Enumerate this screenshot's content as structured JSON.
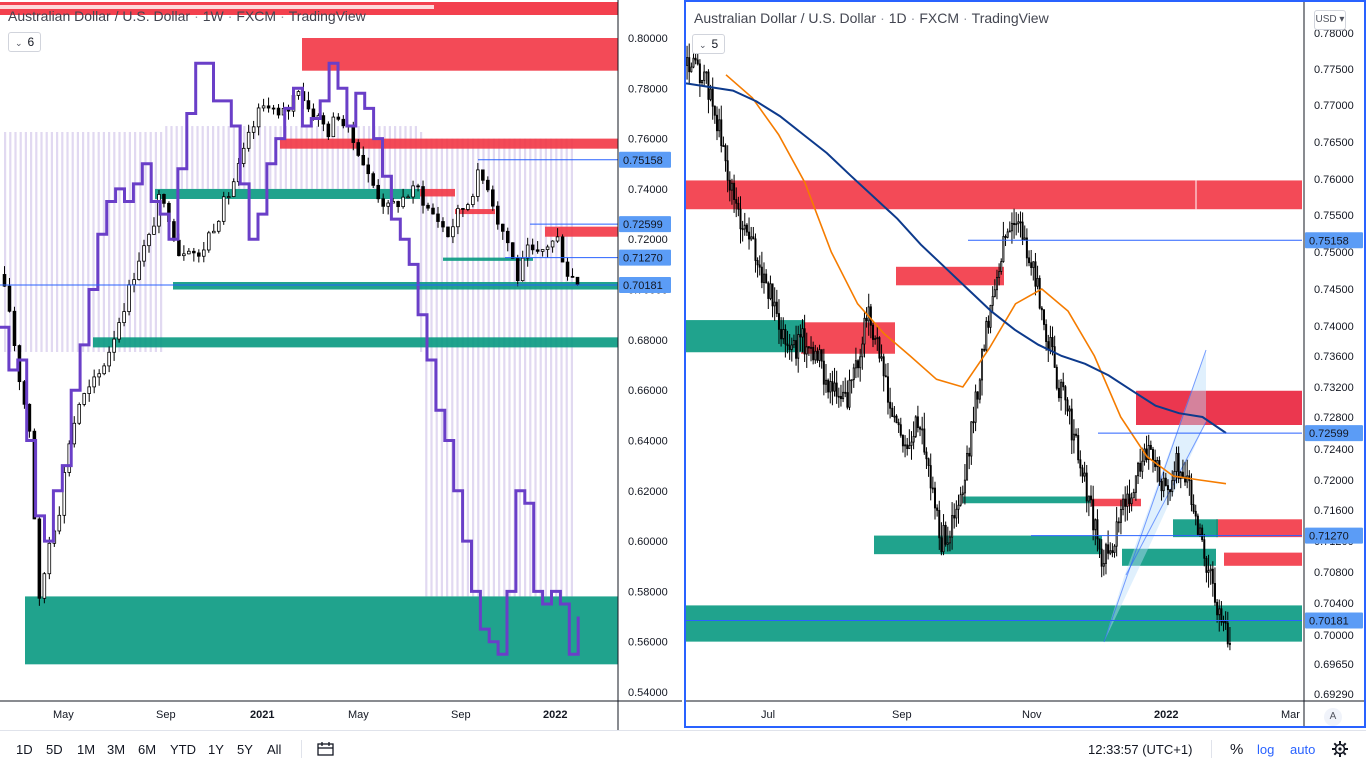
{
  "left_chart": {
    "title": "Australian Dollar / U.S. Dollar",
    "interval": "1W",
    "source": "FXCM",
    "platform": "TradingView",
    "indicator_count": "6",
    "x_labels": [
      "May",
      "Sep",
      "2021",
      "May",
      "Sep",
      "2022"
    ],
    "price_labels": [
      "0.80000",
      "0.78000",
      "0.76000",
      "0.74000",
      "0.72000",
      "0.70000",
      "0.68000",
      "0.66000",
      "0.64000",
      "0.62000",
      "0.60000",
      "0.58000",
      "0.56000",
      "0.54000"
    ],
    "price_tags": [
      "0.75158",
      "0.72599",
      "0.71270",
      "0.70181"
    ]
  },
  "right_chart": {
    "title": "Australian Dollar / U.S. Dollar",
    "interval": "1D",
    "source": "FXCM",
    "platform": "TradingView",
    "indicator_count": "5",
    "currency": "USD",
    "auto_scale_label": "A",
    "x_labels": [
      "Jul",
      "Sep",
      "Nov",
      "2022",
      "Mar"
    ],
    "price_labels": [
      "0.78000",
      "0.77500",
      "0.77000",
      "0.76500",
      "0.76000",
      "0.75500",
      "0.75000",
      "0.74500",
      "0.74000",
      "0.73600",
      "0.73200",
      "0.72800",
      "0.72400",
      "0.72000",
      "0.71600",
      "0.71200",
      "0.70800",
      "0.70400",
      "0.70000",
      "0.69650",
      "0.69290"
    ],
    "price_tags": [
      "0.75158",
      "0.72599",
      "0.71270",
      "0.70181"
    ]
  },
  "bottom_bar": {
    "timeframes": [
      "1D",
      "5D",
      "1M",
      "3M",
      "6M",
      "YTD",
      "1Y",
      "5Y",
      "All"
    ],
    "clock": "12:33:57 (UTC+1)",
    "percent_label": "%",
    "log_label": "log",
    "auto_label": "auto"
  },
  "colors": {
    "supply_zone": "#f23645",
    "demand_zone": "#089981",
    "line_blue": "#2962ff",
    "tag_bg": "#5b9cf6",
    "overlay_purple": "#6a3fc8",
    "ema_orange": "#f57c00",
    "ma_navy": "#0d3a8c"
  },
  "chart_data": [
    {
      "type": "candlestick",
      "title": "Australian Dollar / U.S. Dollar · 1W · FXCM",
      "ylim": [
        0.53,
        0.815
      ],
      "x_ticks": [
        "May",
        "Sep",
        "2021",
        "May",
        "Sep",
        "2022"
      ],
      "horizontal_levels": [
        0.75158,
        0.72599,
        0.7127,
        0.70181
      ],
      "supply_zones": [
        [
          0.787,
          0.8
        ],
        [
          0.756,
          0.76
        ],
        [
          0.737,
          0.74
        ],
        [
          0.73,
          0.732
        ],
        [
          0.721,
          0.725
        ]
      ],
      "demand_zones": [
        [
          0.736,
          0.74
        ],
        [
          0.7,
          0.703
        ],
        [
          0.677,
          0.681
        ],
        [
          0.551,
          0.578
        ]
      ],
      "series": [
        {
          "name": "AUDUSD weekly close",
          "values": [
            0.706,
            0.692,
            0.665,
            0.645,
            0.575,
            0.6,
            0.613,
            0.64,
            0.655,
            0.66,
            0.666,
            0.676,
            0.688,
            0.7,
            0.713,
            0.72,
            0.735,
            0.73,
            0.715,
            0.718,
            0.712,
            0.722,
            0.73,
            0.738,
            0.748,
            0.76,
            0.77,
            0.775,
            0.768,
            0.772,
            0.781,
            0.772,
            0.768,
            0.763,
            0.77,
            0.762,
            0.756,
            0.745,
            0.738,
            0.732,
            0.735,
            0.738,
            0.74,
            0.732,
            0.728,
            0.722,
            0.73,
            0.735,
            0.745,
            0.742,
            0.728,
            0.719,
            0.705,
            0.715,
            0.713,
            0.718,
            0.72,
            0.707,
            0.703
          ]
        }
      ]
    },
    {
      "type": "candlestick",
      "title": "Australian Dollar / U.S. Dollar · 1D · FXCM",
      "ylim": [
        0.6929,
        0.78
      ],
      "x_ticks": [
        "Jul",
        "Sep",
        "Nov",
        "2022",
        "Mar"
      ],
      "horizontal_levels": [
        0.75158,
        0.72599,
        0.7127,
        0.70181
      ],
      "supply_zones": [
        [
          0.7558,
          0.7598
        ],
        [
          0.7455,
          0.748
        ],
        [
          0.7363,
          0.7405
        ],
        [
          0.727,
          0.7315
        ],
        [
          0.7125,
          0.7148
        ],
        [
          0.7088,
          0.7105
        ]
      ],
      "demand_zones": [
        [
          0.7365,
          0.7408
        ],
        [
          0.7103,
          0.7127
        ],
        [
          0.7088,
          0.711
        ],
        [
          0.7125,
          0.7148
        ],
        [
          0.6992,
          0.7037
        ]
      ],
      "series": [
        {
          "name": "AUDUSD daily close",
          "values": [
            0.7755,
            0.775,
            0.773,
            0.768,
            0.7605,
            0.755,
            0.752,
            0.748,
            0.744,
            0.74,
            0.737,
            0.738,
            0.737,
            0.734,
            0.731,
            0.73,
            0.734,
            0.742,
            0.738,
            0.73,
            0.726,
            0.724,
            0.728,
            0.72,
            0.712,
            0.714,
            0.718,
            0.728,
            0.738,
            0.746,
            0.752,
            0.755,
            0.75,
            0.745,
            0.738,
            0.732,
            0.728,
            0.722,
            0.716,
            0.709,
            0.712,
            0.716,
            0.72,
            0.724,
            0.722,
            0.718,
            0.722,
            0.72,
            0.714,
            0.708,
            0.702,
            0.7
          ]
        },
        {
          "name": "Orange moving average",
          "values": [
            0.7742,
            0.771,
            0.766,
            0.7595,
            0.75,
            0.743,
            0.739,
            0.736,
            0.733,
            0.732,
            0.737,
            0.743,
            0.745,
            0.742,
            0.736,
            0.728,
            0.723,
            0.7205,
            0.72,
            0.7195
          ]
        },
        {
          "name": "Navy moving average",
          "values": [
            0.773,
            0.7725,
            0.772,
            0.7705,
            0.7685,
            0.766,
            0.7635,
            0.7605,
            0.7575,
            0.7545,
            0.751,
            0.748,
            0.745,
            0.742,
            0.7395,
            0.7375,
            0.736,
            0.735,
            0.7335,
            0.7315,
            0.7295,
            0.7285,
            0.728,
            0.726
          ]
        }
      ]
    }
  ]
}
